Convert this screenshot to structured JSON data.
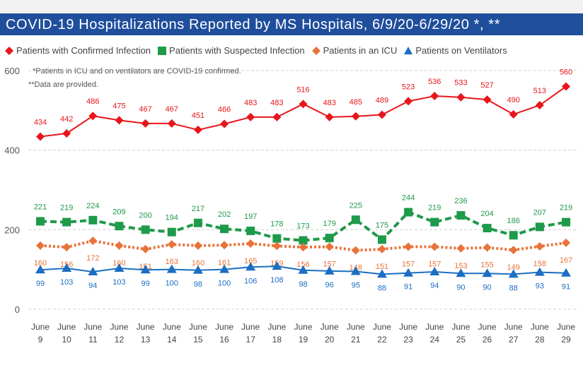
{
  "title": "COVID-19 Hospitalizations Reported by MS Hospitals, 6/9/20-6/29/20 *, **",
  "notes": [
    "*Patients in ICU and on ventilators are COVID-19 confirmed.",
    "**Data are provided."
  ],
  "colors": {
    "title_bar": "#1f4e9c",
    "confirmed": "#e8151b",
    "suspected": "#1e9a4a",
    "icu": "#e8733a",
    "ventilators": "#1b6ec2",
    "grid": "#d0d0d0"
  },
  "chart_data": {
    "type": "line",
    "title": "COVID-19 Hospitalizations Reported by MS Hospitals, 6/9/20-6/29/20 *, **",
    "xlabel": "",
    "ylabel": "",
    "ylim": [
      0,
      600
    ],
    "yticks": [
      0,
      200,
      400,
      600
    ],
    "grid": true,
    "legend_position": "top",
    "categories": [
      [
        "June",
        "9"
      ],
      [
        "June",
        "10"
      ],
      [
        "June",
        "11"
      ],
      [
        "June",
        "12"
      ],
      [
        "June",
        "13"
      ],
      [
        "June",
        "14"
      ],
      [
        "June",
        "15"
      ],
      [
        "June",
        "16"
      ],
      [
        "June",
        "17"
      ],
      [
        "June",
        "18"
      ],
      [
        "June",
        "19"
      ],
      [
        "June",
        "20"
      ],
      [
        "June",
        "21"
      ],
      [
        "June",
        "22"
      ],
      [
        "June",
        "23"
      ],
      [
        "June",
        "24"
      ],
      [
        "June",
        "25"
      ],
      [
        "June",
        "26"
      ],
      [
        "June",
        "27"
      ],
      [
        "June",
        "28"
      ],
      [
        "June",
        "29"
      ]
    ],
    "series": [
      {
        "name": "Patients with Confirmed Infection",
        "key": "confirmed",
        "marker": "diamond",
        "line": "solid",
        "values": [
          434,
          442,
          486,
          475,
          467,
          467,
          451,
          466,
          483,
          483,
          516,
          483,
          485,
          489,
          523,
          536,
          533,
          527,
          490,
          513,
          560
        ]
      },
      {
        "name": "Patients with Suspected Infection",
        "key": "suspected",
        "marker": "square",
        "line": "dashed",
        "values": [
          221,
          219,
          224,
          209,
          200,
          194,
          217,
          202,
          197,
          178,
          173,
          179,
          225,
          175,
          244,
          219,
          236,
          204,
          186,
          207,
          219
        ]
      },
      {
        "name": "Patients in an ICU",
        "key": "icu",
        "marker": "diamond",
        "line": "dotted",
        "values": [
          160,
          156,
          172,
          160,
          151,
          163,
          160,
          161,
          165,
          159,
          156,
          157,
          148,
          151,
          157,
          157,
          153,
          155,
          149,
          158,
          167
        ]
      },
      {
        "name": "Patients on Ventilators",
        "key": "ventilators",
        "marker": "triangle",
        "line": "solid",
        "values": [
          99,
          103,
          94,
          103,
          99,
          100,
          98,
          100,
          106,
          108,
          98,
          96,
          95,
          88,
          91,
          94,
          90,
          90,
          88,
          93,
          91
        ]
      }
    ]
  }
}
